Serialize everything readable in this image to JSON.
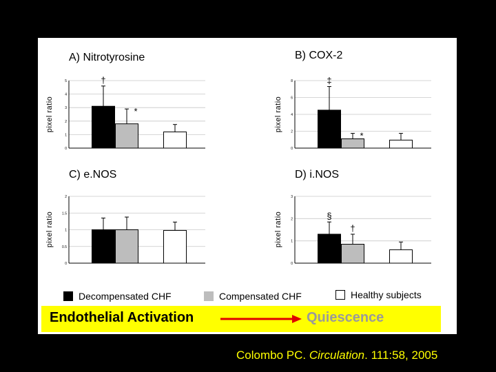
{
  "chart_data": [
    {
      "type": "bar",
      "title": "A) Nitrotyrosine",
      "ylabel": "pixel ratio",
      "ylim": [
        0,
        5
      ],
      "yticks": [
        "0",
        "1",
        "2",
        "3",
        "4",
        "5"
      ],
      "categories": [
        "Decompensated CHF",
        "Compensated CHF",
        "Healthy subjects"
      ],
      "values": [
        3.1,
        1.8,
        1.2
      ],
      "errors": [
        1.5,
        1.1,
        0.55
      ],
      "annotations": [
        "†",
        "*",
        ""
      ]
    },
    {
      "type": "bar",
      "title": "B) COX-2",
      "ylabel": "pixel ratio",
      "ylim": [
        0,
        8
      ],
      "yticks": [
        "0",
        "2",
        "4",
        "6",
        "8"
      ],
      "categories": [
        "Decompensated CHF",
        "Compensated CHF",
        "Healthy subjects"
      ],
      "values": [
        4.5,
        1.1,
        0.95
      ],
      "errors": [
        2.8,
        0.65,
        0.8
      ],
      "annotations": [
        "‡",
        "*",
        ""
      ]
    },
    {
      "type": "bar",
      "title": "C) e.NOS",
      "ylabel": "pixel ratio",
      "ylim": [
        0,
        2
      ],
      "yticks": [
        "0",
        "0.5",
        "1",
        "1.5",
        "2"
      ],
      "categories": [
        "Decompensated CHF",
        "Compensated CHF",
        "Healthy subjects"
      ],
      "values": [
        1.0,
        1.0,
        0.98
      ],
      "errors": [
        0.35,
        0.38,
        0.25
      ],
      "annotations": [
        "",
        "",
        ""
      ]
    },
    {
      "type": "bar",
      "title": "D) i.NOS",
      "ylabel": "pixel ratio",
      "ylim": [
        0,
        3
      ],
      "yticks": [
        "0",
        "1",
        "2",
        "3"
      ],
      "categories": [
        "Decompensated CHF",
        "Compensated CHF",
        "Healthy subjects"
      ],
      "values": [
        1.3,
        0.85,
        0.6
      ],
      "errors": [
        0.55,
        0.45,
        0.35
      ],
      "annotations": [
        "§",
        "†",
        ""
      ]
    }
  ],
  "legend": {
    "decompensated": "Decompensated CHF",
    "compensated": "Compensated CHF",
    "healthy": "Healthy subjects"
  },
  "banner": {
    "left": "Endothelial Activation",
    "right": "Quiescence"
  },
  "citation": {
    "prefix": "Colombo PC. ",
    "journal": "Circulation",
    "suffix": ". 111:58, 2005"
  },
  "colors": {
    "decompensated": "#000000",
    "compensated": "#bdbdbd",
    "healthy": "#ffffff",
    "banner": "#ffff00",
    "arrow": "#e00000",
    "citation": "#ffff00",
    "quiescence": "#9a9a9a"
  }
}
